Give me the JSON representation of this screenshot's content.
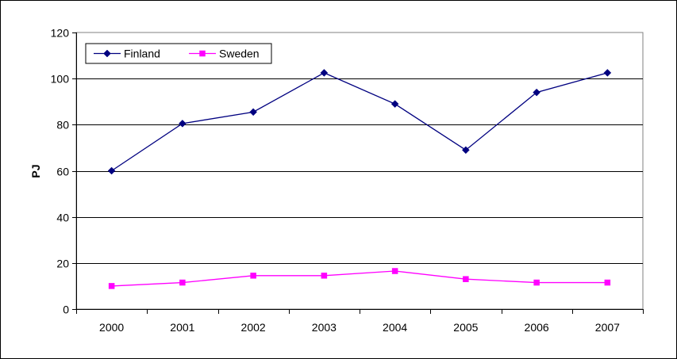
{
  "chart_data": {
    "type": "line",
    "title": "",
    "xlabel": "",
    "ylabel": "PJ",
    "categories": [
      "2000",
      "2001",
      "2002",
      "2003",
      "2004",
      "2005",
      "2006",
      "2007"
    ],
    "ylim": [
      0,
      120
    ],
    "yticks": [
      0,
      20,
      40,
      60,
      80,
      100,
      120
    ],
    "grid": "horizontal",
    "legend_position": "top-left",
    "series": [
      {
        "name": "Finland",
        "color": "#000080",
        "marker": "diamond",
        "values": [
          60,
          80.5,
          85.5,
          102.5,
          89,
          69,
          94,
          102.5
        ]
      },
      {
        "name": "Sweden",
        "color": "#FF00FF",
        "marker": "square",
        "values": [
          10,
          11.5,
          14.5,
          14.5,
          16.5,
          13,
          11.5,
          11.5
        ]
      }
    ]
  }
}
